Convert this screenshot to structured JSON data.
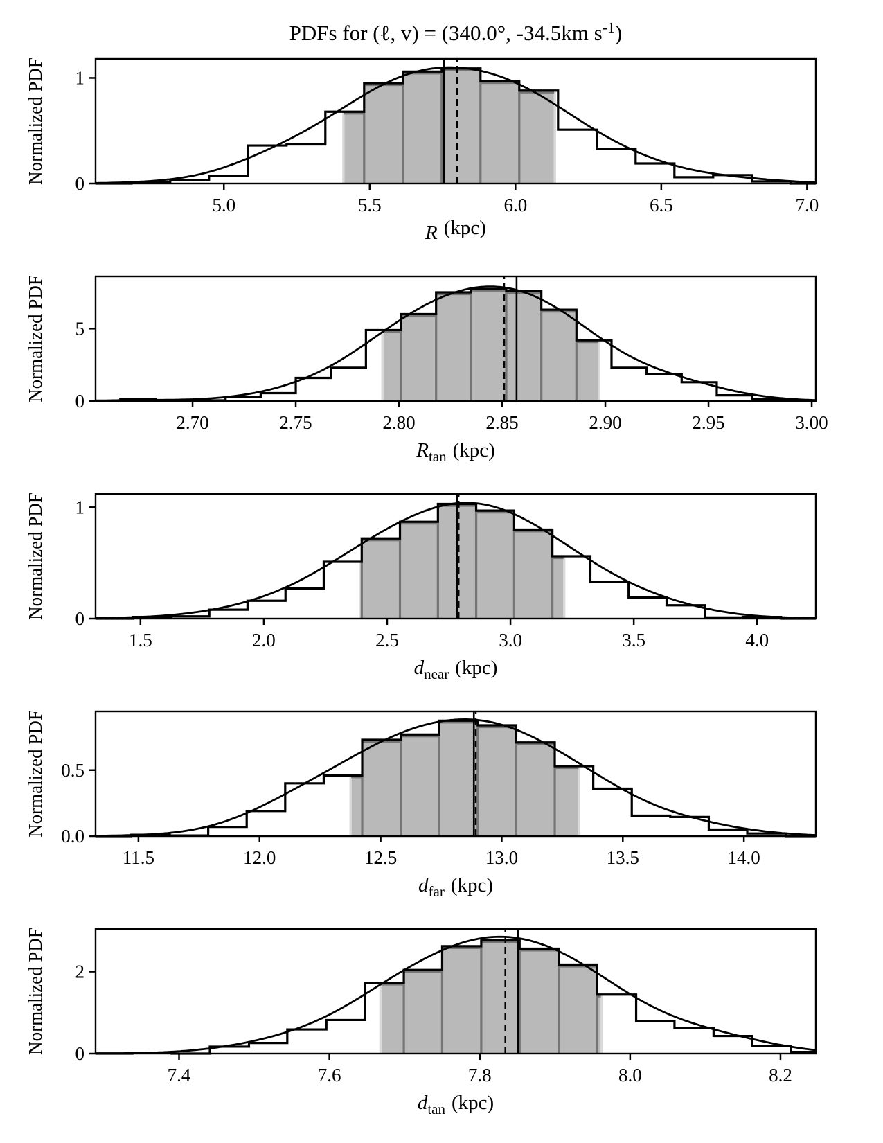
{
  "title": {
    "main": "PDFs for (ℓ, v) = (340.0°, -34.5km s",
    "sup": "-1",
    "end": ")"
  },
  "colors": {
    "line": "#000000",
    "shade_fill": "#b9b9b9",
    "shade_edge": "#757575",
    "shade_boundary": "#d9d9d9",
    "background": "#ffffff"
  },
  "chart_data": [
    {
      "type": "histogram+kde",
      "name": "R",
      "xlabel": {
        "var": "R",
        "sub": "",
        "unit": "(kpc)"
      },
      "ylabel": "Normalized PDF",
      "xlim": [
        4.56,
        7.03
      ],
      "ylim": [
        0,
        1.18
      ],
      "xticks": {
        "values": [
          5.0,
          5.5,
          6.0,
          6.5,
          7.0
        ],
        "labels": [
          "5.0",
          "5.5",
          "6.0",
          "6.5",
          "7.0"
        ]
      },
      "yticks": {
        "values": [
          0,
          1
        ],
        "labels": [
          "0",
          "1"
        ]
      },
      "bin_edges": [
        4.683,
        4.816,
        4.949,
        5.082,
        5.215,
        5.348,
        5.481,
        5.614,
        5.747,
        5.88,
        6.013,
        6.146,
        6.279,
        6.412,
        6.545,
        6.678,
        6.811,
        6.944
      ],
      "bin_heights": [
        0.015,
        0.03,
        0.07,
        0.36,
        0.37,
        0.68,
        0.95,
        1.06,
        1.09,
        0.97,
        0.88,
        0.51,
        0.33,
        0.19,
        0.06,
        0.08,
        0.02
      ],
      "shaded_interval": [
        5.41,
        6.135
      ],
      "solid_line": 5.755,
      "dashed_line": 5.8,
      "kde_peak": 1.1
    },
    {
      "type": "histogram+kde",
      "name": "Rtan",
      "xlabel": {
        "var": "R",
        "sub": "tan",
        "unit": "(kpc)"
      },
      "ylabel": "Normalized PDF",
      "xlim": [
        2.653,
        3.002
      ],
      "ylim": [
        0,
        8.6
      ],
      "xticks": {
        "values": [
          2.7,
          2.75,
          2.8,
          2.85,
          2.9,
          2.95,
          3.0
        ],
        "labels": [
          "2.70",
          "2.75",
          "2.80",
          "2.85",
          "2.90",
          "2.95",
          "3.00"
        ]
      },
      "yticks": {
        "values": [
          0,
          5
        ],
        "labels": [
          "0",
          "5"
        ]
      },
      "bin_edges": [
        2.665,
        2.682,
        2.699,
        2.716,
        2.733,
        2.75,
        2.767,
        2.784,
        2.801,
        2.818,
        2.835,
        2.852,
        2.869,
        2.886,
        2.903,
        2.92,
        2.937,
        2.954,
        2.971,
        2.988,
        3.002
      ],
      "bin_heights": [
        0.15,
        0.02,
        0.05,
        0.3,
        0.55,
        1.6,
        2.3,
        4.9,
        6.0,
        7.5,
        7.75,
        7.6,
        6.3,
        4.2,
        2.3,
        1.85,
        1.3,
        0.4,
        0.12,
        0.05
      ],
      "shaded_interval": [
        2.792,
        2.897
      ],
      "solid_line": 2.857,
      "dashed_line": 2.851,
      "kde_peak": 7.9
    },
    {
      "type": "histogram+kde",
      "name": "dnear",
      "xlabel": {
        "var": "d",
        "sub": "near",
        "unit": "(kpc)"
      },
      "ylabel": "Normalized PDF",
      "xlim": [
        1.318,
        4.238
      ],
      "ylim": [
        0,
        1.12
      ],
      "xticks": {
        "values": [
          1.5,
          2.0,
          2.5,
          3.0,
          3.5,
          4.0
        ],
        "labels": [
          "1.5",
          "2.0",
          "2.5",
          "3.0",
          "3.5",
          "4.0"
        ]
      },
      "yticks": {
        "values": [
          0,
          1
        ],
        "labels": [
          "0",
          "1"
        ]
      },
      "bin_edges": [
        1.47,
        1.625,
        1.779,
        1.934,
        2.088,
        2.243,
        2.397,
        2.552,
        2.706,
        2.861,
        3.015,
        3.17,
        3.324,
        3.479,
        3.633,
        3.788,
        3.942,
        4.097
      ],
      "bin_heights": [
        0.015,
        0.02,
        0.08,
        0.16,
        0.27,
        0.51,
        0.72,
        0.87,
        1.03,
        0.97,
        0.8,
        0.56,
        0.33,
        0.19,
        0.12,
        0.01,
        0.015
      ],
      "shaded_interval": [
        2.393,
        3.218
      ],
      "solid_line": 2.784,
      "dashed_line": 2.79,
      "kde_peak": 1.04
    },
    {
      "type": "histogram+kde",
      "name": "dfar",
      "xlabel": {
        "var": "d",
        "sub": "far",
        "unit": "(kpc)"
      },
      "ylabel": "Normalized PDF",
      "xlim": [
        11.323,
        14.297
      ],
      "ylim": [
        0,
        0.945
      ],
      "xticks": {
        "values": [
          11.5,
          12.0,
          12.5,
          13.0,
          13.5,
          14.0
        ],
        "labels": [
          "11.5",
          "12.0",
          "12.5",
          "13.0",
          "13.5",
          "14.0"
        ]
      },
      "yticks": {
        "values": [
          0,
          0.5
        ],
        "labels": [
          "0.0",
          "0.5"
        ]
      },
      "bin_edges": [
        11.47,
        11.629,
        11.788,
        11.947,
        12.106,
        12.265,
        12.424,
        12.583,
        12.742,
        12.901,
        13.06,
        13.219,
        13.378,
        13.537,
        13.696,
        13.855,
        14.014,
        14.173
      ],
      "bin_heights": [
        0.01,
        0.005,
        0.07,
        0.19,
        0.4,
        0.46,
        0.73,
        0.77,
        0.875,
        0.84,
        0.71,
        0.53,
        0.36,
        0.155,
        0.145,
        0.05,
        0.02
      ],
      "shaded_interval": [
        12.376,
        13.32
      ],
      "solid_line": 12.885,
      "dashed_line": 12.893,
      "kde_peak": 0.885
    },
    {
      "type": "histogram+kde",
      "name": "dtan",
      "xlabel": {
        "var": "d",
        "sub": "tan",
        "unit": "(kpc)"
      },
      "ylabel": "Normalized PDF",
      "xlim": [
        7.289,
        8.247
      ],
      "ylim": [
        0,
        3.04
      ],
      "xticks": {
        "values": [
          7.4,
          7.6,
          7.8,
          8.0,
          8.2
        ],
        "labels": [
          "7.4",
          "7.6",
          "7.8",
          "8.0",
          "8.2"
        ]
      },
      "yticks": {
        "values": [
          0,
          2
        ],
        "labels": [
          "0",
          "2"
        ]
      },
      "bin_edges": [
        7.338,
        7.39,
        7.441,
        7.493,
        7.544,
        7.596,
        7.647,
        7.699,
        7.75,
        7.802,
        7.853,
        7.905,
        7.956,
        8.008,
        8.059,
        8.111,
        8.162,
        8.214,
        8.247
      ],
      "bin_heights": [
        0.015,
        0.0,
        0.17,
        0.26,
        0.59,
        0.82,
        1.73,
        2.04,
        2.62,
        2.76,
        2.56,
        2.17,
        1.44,
        0.795,
        0.63,
        0.43,
        0.18,
        0.04
      ],
      "shaded_interval": [
        7.668,
        7.962
      ],
      "solid_line": 7.851,
      "dashed_line": 7.834,
      "kde_peak": 2.85
    }
  ]
}
